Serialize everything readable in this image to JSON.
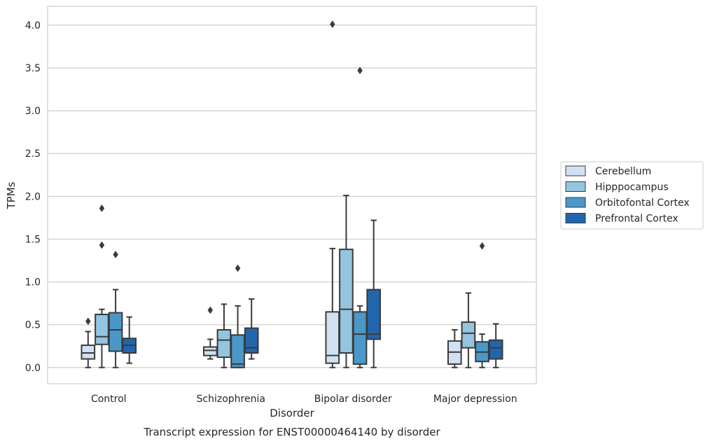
{
  "chart_data": {
    "type": "box",
    "title": "Transcript expression for ENST00000464140 by disorder",
    "xlabel": "Disorder",
    "ylabel": "TPMs",
    "ylim": [
      -0.19,
      4.22
    ],
    "yticks": [
      0.0,
      0.5,
      1.0,
      1.5,
      2.0,
      2.5,
      3.0,
      3.5,
      4.0
    ],
    "ytick_labels": [
      "0.0",
      "0.5",
      "1.0",
      "1.5",
      "2.0",
      "2.5",
      "3.0",
      "3.5",
      "4.0"
    ],
    "grid": true,
    "legend_position": "right",
    "categories": [
      "Control",
      "Schizophrenia",
      "Bipolar disorder",
      "Major depression"
    ],
    "series": [
      {
        "name": "Cerebellum",
        "color": "#d0e1f2",
        "boxes": [
          {
            "whislo": 0.0,
            "q1": 0.1,
            "med": 0.17,
            "q3": 0.26,
            "whishi": 0.42,
            "fliers": [
              0.54
            ]
          },
          {
            "whislo": 0.1,
            "q1": 0.14,
            "med": 0.2,
            "q3": 0.24,
            "whishi": 0.33,
            "fliers": [
              0.67
            ]
          },
          {
            "whislo": 0.0,
            "q1": 0.05,
            "med": 0.14,
            "q3": 0.65,
            "whishi": 1.39,
            "fliers": [
              4.01
            ]
          },
          {
            "whislo": 0.0,
            "q1": 0.04,
            "med": 0.18,
            "q3": 0.31,
            "whishi": 0.44,
            "fliers": []
          }
        ]
      },
      {
        "name": "Hipppocampus",
        "color": "#94c4df",
        "boxes": [
          {
            "whislo": 0.0,
            "q1": 0.27,
            "med": 0.36,
            "q3": 0.62,
            "whishi": 0.68,
            "fliers": [
              1.43,
              1.86
            ]
          },
          {
            "whislo": 0.0,
            "q1": 0.12,
            "med": 0.32,
            "q3": 0.44,
            "whishi": 0.74,
            "fliers": []
          },
          {
            "whislo": 0.0,
            "q1": 0.17,
            "med": 0.68,
            "q3": 1.38,
            "whishi": 2.01,
            "fliers": []
          },
          {
            "whislo": 0.0,
            "q1": 0.23,
            "med": 0.4,
            "q3": 0.53,
            "whishi": 0.87,
            "fliers": []
          }
        ]
      },
      {
        "name": "Orbitofontal Cortex",
        "color": "#4a98c9",
        "boxes": [
          {
            "whislo": 0.0,
            "q1": 0.19,
            "med": 0.44,
            "q3": 0.64,
            "whishi": 0.91,
            "fliers": [
              1.32
            ]
          },
          {
            "whislo": 0.0,
            "q1": 0.0,
            "med": 0.04,
            "q3": 0.38,
            "whishi": 0.72,
            "fliers": [
              1.16
            ]
          },
          {
            "whislo": 0.0,
            "q1": 0.04,
            "med": 0.39,
            "q3": 0.65,
            "whishi": 0.72,
            "fliers": [
              3.47
            ]
          },
          {
            "whislo": 0.0,
            "q1": 0.07,
            "med": 0.18,
            "q3": 0.3,
            "whishi": 0.39,
            "fliers": [
              1.42
            ]
          }
        ]
      },
      {
        "name": "Prefrontal Cortex",
        "color": "#2166ac",
        "boxes": [
          {
            "whislo": 0.05,
            "q1": 0.17,
            "med": 0.26,
            "q3": 0.34,
            "whishi": 0.59,
            "fliers": []
          },
          {
            "whislo": 0.1,
            "q1": 0.17,
            "med": 0.23,
            "q3": 0.46,
            "whishi": 0.8,
            "fliers": []
          },
          {
            "whislo": 0.0,
            "q1": 0.33,
            "med": 0.39,
            "q3": 0.91,
            "whishi": 1.72,
            "fliers": []
          },
          {
            "whislo": 0.0,
            "q1": 0.1,
            "med": 0.23,
            "q3": 0.32,
            "whishi": 0.51,
            "fliers": []
          }
        ]
      }
    ]
  }
}
